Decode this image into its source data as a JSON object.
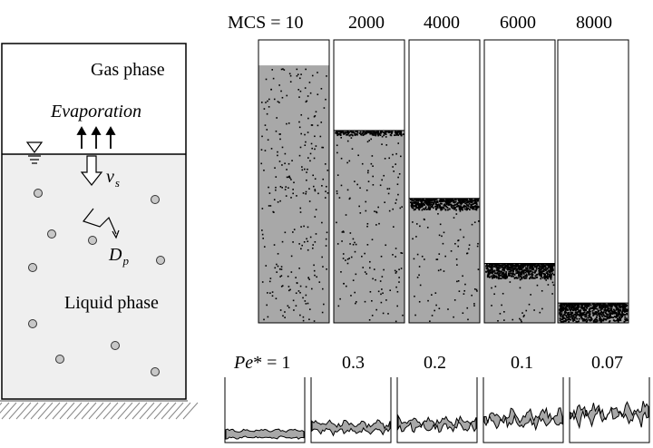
{
  "schematic": {
    "gas_phase": "Gas phase",
    "evaporation": "Evaporation",
    "velocity_symbol": "v",
    "velocity_subscript": "s",
    "diffusion_symbol": "D",
    "diffusion_subscript": "p",
    "liquid_phase": "Liquid phase",
    "gas_fill": "#ffffff",
    "liquid_fill": "#efefef",
    "particle_fill": "#c8c8c8"
  },
  "timeline": {
    "first_prefix": "MCS = ",
    "panels": [
      {
        "label": "10",
        "fill_fraction": 0.91
      },
      {
        "label": "2000",
        "fill_fraction": 0.68
      },
      {
        "label": "4000",
        "fill_fraction": 0.44
      },
      {
        "label": "6000",
        "fill_fraction": 0.21
      },
      {
        "label": "8000",
        "fill_fraction": 0.07
      }
    ]
  },
  "peclet": {
    "prefix_symbol": "Pe",
    "prefix_suffix": "* = ",
    "panels": [
      {
        "label": "1",
        "roughness": 0.05
      },
      {
        "label": "0.3",
        "roughness": 0.3
      },
      {
        "label": "0.2",
        "roughness": 0.45
      },
      {
        "label": "0.1",
        "roughness": 0.65
      },
      {
        "label": "0.07",
        "roughness": 0.85
      }
    ]
  },
  "colors": {
    "liquid_gray": "#a8a8a8",
    "dots": "#000000",
    "crust": "#000000"
  }
}
